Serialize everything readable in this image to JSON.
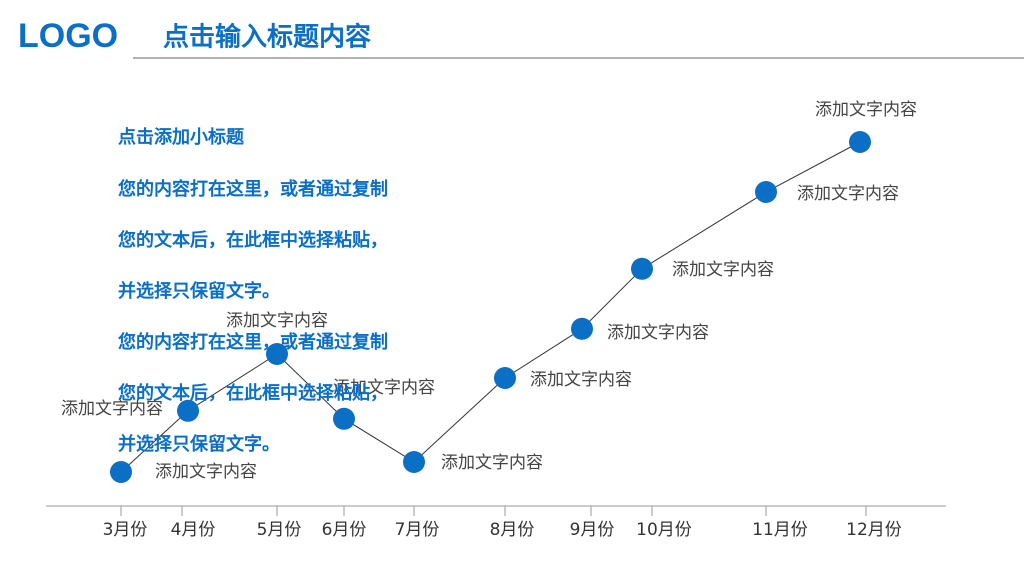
{
  "header": {
    "logo": "LOGO",
    "title": "点击输入标题内容"
  },
  "body": {
    "subtitle": "点击添加小标题",
    "lines": [
      "您的内容打在这里，或者通过复制",
      "您的文本后，在此框中选择粘贴，",
      "并选择只保留文字。",
      "您的内容打在这里，或者通过复制",
      "您的文本后，在此框中选择粘贴，",
      "并选择只保留文字。"
    ]
  },
  "chart_data": {
    "type": "line",
    "categories": [
      "3月份",
      "4月份",
      "5月份",
      "6月份",
      "7月份",
      "8月份",
      "9月份",
      "10月份",
      "11月份",
      "12月份"
    ],
    "values": [
      8.5,
      23.8,
      38,
      21.8,
      11,
      32,
      44.3,
      59.3,
      78.5,
      91
    ],
    "point_labels": [
      "添加文字内容",
      "添加文字内容",
      "添加文字内容",
      "添加文字内容",
      "添加文字内容",
      "添加文字内容",
      "添加文字内容",
      "添加文字内容",
      "添加文字内容",
      "添加文字内容"
    ],
    "ylim": [
      0,
      100
    ],
    "color": "#0b6fc6",
    "line_color": "#333333"
  }
}
